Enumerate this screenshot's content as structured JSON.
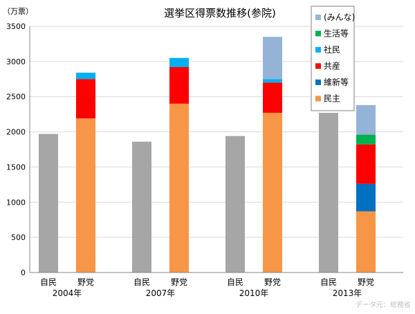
{
  "chart_data": {
    "type": "bar",
    "title": "選挙区得票数推移(参院)",
    "ylabel": "（万票）",
    "ylim": [
      0,
      3500
    ],
    "yticks": [
      0,
      500,
      1000,
      1500,
      2000,
      2500,
      3000,
      3500
    ],
    "grid": "horizontal",
    "legend_position": "top-right",
    "source": "データ元：総務省",
    "groups": [
      {
        "year": "2004年",
        "bars": [
          {
            "label": "自民",
            "segments": [
              {
                "series": "自民",
                "value": 1970
              }
            ]
          },
          {
            "label": "野党",
            "segments": [
              {
                "series": "民主",
                "value": 2190
              },
              {
                "series": "共産",
                "value": 560
              },
              {
                "series": "社民",
                "value": 90
              }
            ]
          }
        ]
      },
      {
        "year": "2007年",
        "bars": [
          {
            "label": "自民",
            "segments": [
              {
                "series": "自民",
                "value": 1860
              }
            ]
          },
          {
            "label": "野党",
            "segments": [
              {
                "series": "民主",
                "value": 2400
              },
              {
                "series": "共産",
                "value": 520
              },
              {
                "series": "社民",
                "value": 130
              }
            ]
          }
        ]
      },
      {
        "year": "2010年",
        "bars": [
          {
            "label": "自民",
            "segments": [
              {
                "series": "自民",
                "value": 1940
              }
            ]
          },
          {
            "label": "野党",
            "segments": [
              {
                "series": "民主",
                "value": 2270
              },
              {
                "series": "共産",
                "value": 430
              },
              {
                "series": "社民",
                "value": 50
              },
              {
                "series": "(みんな)",
                "value": 600
              }
            ]
          }
        ]
      },
      {
        "year": "2013年",
        "bars": [
          {
            "label": "自民",
            "segments": [
              {
                "series": "自民",
                "value": 2270
              }
            ]
          },
          {
            "label": "野党",
            "segments": [
              {
                "series": "民主",
                "value": 870
              },
              {
                "series": "維新等",
                "value": 390
              },
              {
                "series": "共産",
                "value": 560
              },
              {
                "series": "生活等",
                "value": 140
              },
              {
                "series": "(みんな)",
                "value": 420
              }
            ]
          }
        ]
      }
    ],
    "legend": [
      {
        "name": "(みんな)",
        "color": "#95b3d7"
      },
      {
        "name": "生活等",
        "color": "#00b050"
      },
      {
        "name": "社民",
        "color": "#00b0f0"
      },
      {
        "name": "共産",
        "color": "#ff0000"
      },
      {
        "name": "維新等",
        "color": "#0070c0"
      },
      {
        "name": "民主",
        "color": "#f79646"
      }
    ],
    "colors": {
      "自民": "#a6a6a6",
      "民主": "#f79646",
      "共産": "#ff0000",
      "社民": "#00b0f0",
      "維新等": "#0070c0",
      "生活等": "#00b050",
      "(みんな)": "#95b3d7"
    }
  }
}
